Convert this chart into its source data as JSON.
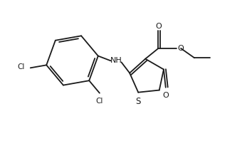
{
  "bg_color": "#ffffff",
  "line_color": "#1a1a1a",
  "lw": 1.3,
  "fig_width": 3.54,
  "fig_height": 1.98,
  "dpi": 100,
  "xlim": [
    0,
    10
  ],
  "ylim": [
    0,
    5.6
  ]
}
